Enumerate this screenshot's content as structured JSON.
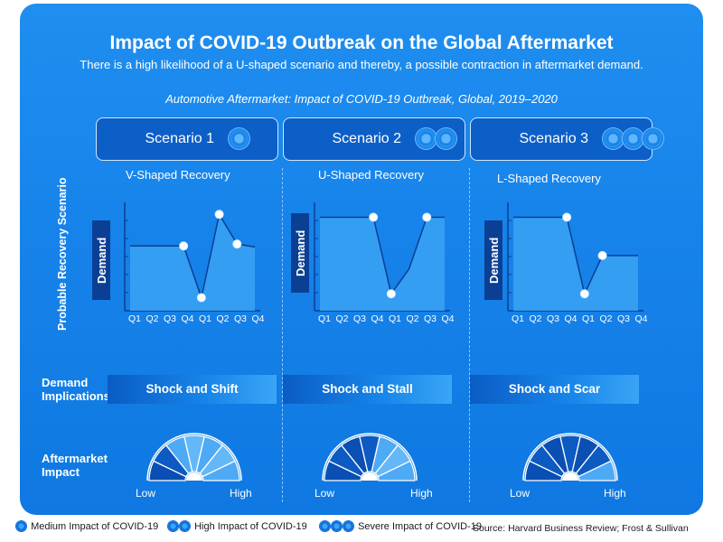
{
  "title": "Impact of COVID-19 Outbreak on the Global Aftermarket",
  "subtitle": "There is a high likelihood of a U-shaped scenario and thereby, a possible contraction in aftermarket demand.",
  "chart_title": "Automotive Aftermarket: Impact of COVID-19 Outbreak, Global, 2019–2020",
  "row_labels": {
    "scenario_axis": "Probable Recovery Scenario",
    "demand_axis": "Demand",
    "implications": [
      "Demand",
      "Implications"
    ],
    "impact": [
      "Aftermarket",
      "Impact"
    ]
  },
  "gauge_labels": {
    "low": "Low",
    "high": "High"
  },
  "chart_data": [
    {
      "type": "area",
      "scenario": "Scenario 1",
      "virus_count": 1,
      "title": "V-Shaped Recovery",
      "ylabel": "Demand",
      "x": [
        "Q1",
        "Q2",
        "Q3",
        "Q4",
        "Q1",
        "Q2",
        "Q3",
        "Q4"
      ],
      "values": [
        0.62,
        0.62,
        0.62,
        0.62,
        0.08,
        0.95,
        0.64,
        0.61
      ],
      "markers": [
        3,
        4,
        5,
        6
      ],
      "ylim": [
        0,
        1
      ],
      "implication": "Shock and Shift",
      "impact_level": 1
    },
    {
      "type": "area",
      "scenario": "Scenario 2",
      "virus_count": 2,
      "title": "U-Shaped Recovery",
      "ylabel": "Demand",
      "x": [
        "Q1",
        "Q2",
        "Q3",
        "Q4",
        "Q1",
        "Q2",
        "Q3",
        "Q4"
      ],
      "values": [
        0.92,
        0.92,
        0.92,
        0.92,
        0.12,
        0.38,
        0.92,
        0.92
      ],
      "markers": [
        3,
        4,
        6
      ],
      "ylim": [
        0,
        1
      ],
      "implication": "Shock and Stall",
      "impact_level": 2
    },
    {
      "type": "area",
      "scenario": "Scenario 3",
      "virus_count": 3,
      "title": "L-Shaped Recovery",
      "ylabel": "Demand",
      "x": [
        "Q1",
        "Q2",
        "Q3",
        "Q4",
        "Q1",
        "Q2",
        "Q3",
        "Q4"
      ],
      "values": [
        0.92,
        0.92,
        0.92,
        0.92,
        0.12,
        0.52,
        0.52,
        0.52
      ],
      "markers": [
        3,
        4,
        5
      ],
      "ylim": [
        0,
        1
      ],
      "implication": "Shock and Scar",
      "impact_level": 3
    }
  ],
  "legend": [
    {
      "count": 1,
      "label": "Medium Impact of COVID-19"
    },
    {
      "count": 2,
      "label": "High Impact of COVID-19"
    },
    {
      "count": 3,
      "label": "Severe Impact of COVID-19"
    }
  ],
  "source": "Source: Harvard Business Review; Frost & Sullivan",
  "colors": {
    "panel": "#1683ea",
    "scenario_box": "#0d5fc8",
    "demand_box": "#0b3f93",
    "area_fill": "#3aa3f3",
    "line": "#0b3f93",
    "gauge_dark": "#0a4fb3",
    "gauge_light": "#ffffff"
  }
}
